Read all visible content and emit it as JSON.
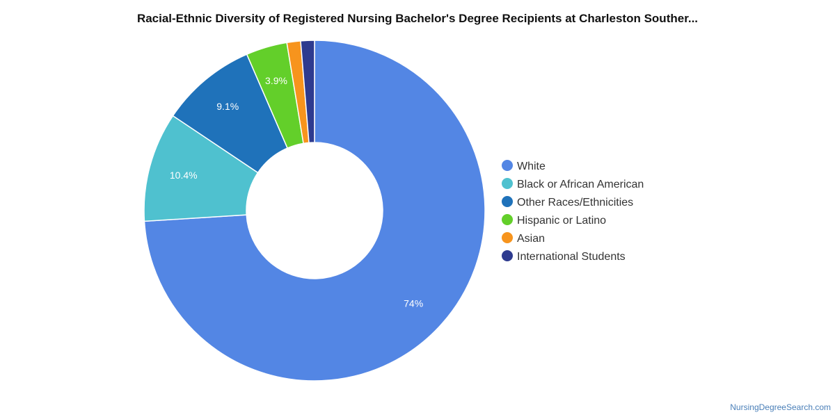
{
  "chart_data": {
    "type": "pie",
    "donut": true,
    "title": "Racial-Ethnic Diversity of Registered Nursing Bachelor's Degree Recipients at Charleston Souther...",
    "legend_position": "right",
    "slices": [
      {
        "name": "White",
        "value": 74.0,
        "label": "74%",
        "color": "#5386E4"
      },
      {
        "name": "Black or African American",
        "value": 10.4,
        "label": "10.4%",
        "color": "#4FC1CF"
      },
      {
        "name": "Other Races/Ethnicities",
        "value": 9.1,
        "label": "9.1%",
        "color": "#1F72BA"
      },
      {
        "name": "Hispanic or Latino",
        "value": 3.9,
        "label": "3.9%",
        "color": "#63CF2A"
      },
      {
        "name": "Asian",
        "value": 1.3,
        "label": "",
        "color": "#F7941D"
      },
      {
        "name": "International Students",
        "value": 1.3,
        "label": "",
        "color": "#2E3B8F"
      }
    ]
  },
  "credit": "NursingDegreeSearch.com"
}
